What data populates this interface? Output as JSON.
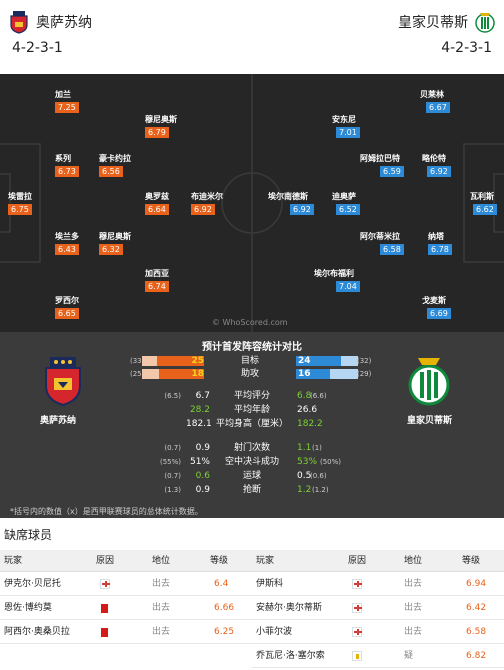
{
  "header": {
    "home_team": "奥萨苏纳",
    "away_team": "皇家贝蒂斯",
    "home_formation": "4-2-3-1",
    "away_formation": "4-2-3-1"
  },
  "pitch": {
    "watermark": "© WhoScored.com",
    "home_players": [
      {
        "name": "埃雷拉",
        "rating": "6.75"
      },
      {
        "name": "系列",
        "rating": "6.73"
      },
      {
        "name": "加兰",
        "rating": "7.25"
      },
      {
        "name": "埃兰多",
        "rating": "6.43"
      },
      {
        "name": "罗西尔",
        "rating": "6.65"
      },
      {
        "name": "豪卡约拉",
        "rating": "6.56"
      },
      {
        "name": "穆尼奥斯",
        "rating": "6.32"
      },
      {
        "name": "穆尼奥斯",
        "rating": "6.79"
      },
      {
        "name": "奥罗兹",
        "rating": "6.64"
      },
      {
        "name": "布迪米尔",
        "rating": "6.92"
      },
      {
        "name": "加西亚",
        "rating": "6.74"
      }
    ],
    "away_players": [
      {
        "name": "埃尔南德斯",
        "rating": "6.92"
      },
      {
        "name": "安东尼",
        "rating": "7.01"
      },
      {
        "name": "迪奥萨",
        "rating": "6.52"
      },
      {
        "name": "埃尔布福利",
        "rating": "7.04"
      },
      {
        "name": "阿姆拉巴特",
        "rating": "6.59"
      },
      {
        "name": "阿尔蒂米拉",
        "rating": "6.58"
      },
      {
        "name": "贝莱林",
        "rating": "6.67"
      },
      {
        "name": "略伦特",
        "rating": "6.92"
      },
      {
        "name": "纳塔",
        "rating": "6.78"
      },
      {
        "name": "戈麦斯",
        "rating": "6.69"
      },
      {
        "name": "瓦利斯",
        "rating": "6.62"
      }
    ]
  },
  "stats": {
    "title": "预计首发阵容统计对比",
    "home_name": "奥萨苏纳",
    "away_name": "皇家贝蒂斯",
    "bars": [
      {
        "label": "目标",
        "home": "25",
        "home_avg": "(33)",
        "away": "24",
        "away_avg": "(32)",
        "home_frac": 0.75,
        "away_frac": 0.72
      },
      {
        "label": "助攻",
        "home": "18",
        "home_avg": "(25)",
        "away": "16",
        "away_avg": "(29)",
        "home_frac": 0.72,
        "away_frac": 0.55
      }
    ],
    "rows": [
      {
        "label": "平均评分",
        "home": "6.7",
        "home_avg": "(6.5)",
        "away": "6.8",
        "away_avg": "(6.6)",
        "home_green": false,
        "away_green": true
      },
      {
        "label": "平均年龄",
        "home": "28.2",
        "home_avg": "",
        "away": "26.6",
        "away_avg": "",
        "home_green": true,
        "away_green": false
      },
      {
        "label": "平均身高（厘米）",
        "home": "182.1",
        "home_avg": "",
        "away": "182.2",
        "away_avg": "",
        "home_green": false,
        "away_green": true
      },
      {
        "label": "射门次数",
        "home": "0.9",
        "home_avg": "(0.7)",
        "away": "1.1",
        "away_avg": "(1)",
        "home_green": false,
        "away_green": true
      },
      {
        "label": "空中决斗成功",
        "home": "51%",
        "home_avg": "(55%)",
        "away": "53%",
        "away_avg": "(50%)",
        "home_green": false,
        "away_green": true
      },
      {
        "label": "运球",
        "home": "0.6",
        "home_avg": "(0.7)",
        "away": "0.5",
        "away_avg": "(0.6)",
        "home_green": true,
        "away_green": false
      },
      {
        "label": "抢断",
        "home": "0.9",
        "home_avg": "(1.3)",
        "away": "1.2",
        "away_avg": "(1.2)",
        "home_green": false,
        "away_green": true
      }
    ],
    "note": "*括号内的数值（x）是西甲联赛球员的总体统计数据。"
  },
  "absent": {
    "title": "缺席球员",
    "headers": {
      "player": "玩家",
      "reason": "原因",
      "position": "地位",
      "grade": "等级"
    },
    "left": [
      {
        "name": "伊克尔·贝尼托",
        "reason": "injury",
        "position": "出去",
        "grade": "6.4"
      },
      {
        "name": "恩佐·博约莫",
        "reason": "red-card",
        "position": "出去",
        "grade": "6.66"
      },
      {
        "name": "阿西尔·奥桑贝拉",
        "reason": "red-card",
        "position": "出去",
        "grade": "6.25"
      }
    ],
    "right": [
      {
        "name": "伊斯科",
        "reason": "injury",
        "position": "出去",
        "grade": "6.94"
      },
      {
        "name": "安赫尔·奥尔蒂斯",
        "reason": "injury",
        "position": "出去",
        "grade": "6.42"
      },
      {
        "name": "小菲尔波",
        "reason": "injury",
        "position": "出去",
        "grade": "6.58"
      },
      {
        "name": "乔瓦尼·洛·塞尔索",
        "reason": "unknown",
        "position": "疑",
        "grade": "6.82"
      }
    ]
  },
  "colors": {
    "home": "#e8621c",
    "away": "#2d8ad6",
    "green": "#7cd233",
    "pitch": "#262626"
  }
}
